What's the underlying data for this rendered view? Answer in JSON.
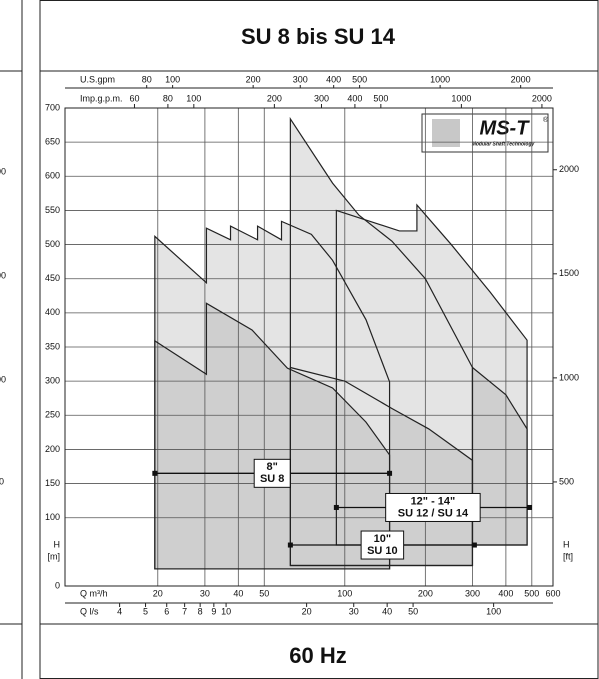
{
  "left_fragments": [
    "00",
    "00",
    "00",
    "0"
  ],
  "chart_data": {
    "type": "area-map",
    "title": "SU 8 bis SU 14",
    "footer": "60 Hz",
    "logo": {
      "text": "MS-T",
      "mark": "®",
      "tagline": "Modular Shaft Technology"
    },
    "xlabel": "Q m³/h",
    "x2label": "Q l/s",
    "x3label": "U.S.gpm",
    "x4label": "Imp.g.p.m.",
    "ylabel": [
      "H",
      "[m]"
    ],
    "y2label": [
      "H",
      "[ft]"
    ],
    "xlog": true,
    "xlim": [
      9,
      600
    ],
    "xticks": [
      20,
      30,
      40,
      50,
      100,
      200,
      300,
      400,
      500,
      600
    ],
    "x2lim": [
      2.5,
      166.7
    ],
    "x2ticks": [
      4,
      5,
      6,
      7,
      8,
      9,
      10,
      20,
      30,
      40,
      50,
      100
    ],
    "x3lim": [
      39.6,
      2642
    ],
    "x3ticks": [
      80,
      100,
      200,
      300,
      400,
      500,
      1000,
      2000
    ],
    "x4lim": [
      33,
      2200
    ],
    "x4ticks": [
      60,
      80,
      100,
      200,
      300,
      400,
      500,
      1000,
      2000
    ],
    "ylim": [
      0,
      700
    ],
    "yticks": [
      0,
      100,
      150,
      200,
      250,
      300,
      350,
      400,
      450,
      500,
      550,
      600,
      650,
      700
    ],
    "y2lim": [
      0,
      2296.7
    ],
    "y2ticks": [
      500,
      1000,
      1500,
      2000
    ],
    "grid": true,
    "regions": [
      {
        "color": "#e4e4e4",
        "x": [
          93,
          160,
          186,
          186,
          250,
          350,
          480,
          480,
          93
        ],
        "values": [
          550,
          520,
          520,
          558,
          500,
          430,
          360,
          60,
          60
        ]
      },
      {
        "color": "#cfcfcf",
        "x": [
          300,
          400,
          480,
          480,
          300
        ],
        "values": [
          320,
          280,
          230,
          60,
          60
        ]
      },
      {
        "color": "#e4e4e4",
        "x": [
          62.6,
          90,
          113,
          150,
          200,
          300,
          300,
          62.6
        ],
        "values": [
          684,
          590,
          543,
          505,
          450,
          320,
          30,
          30
        ]
      },
      {
        "color": "#cfcfcf",
        "x": [
          62.6,
          100,
          150,
          206,
          300,
          300,
          62.6
        ],
        "values": [
          320,
          300,
          260,
          230,
          184,
          30,
          30
        ]
      },
      {
        "color": "#e4e4e4",
        "x": [
          19.5,
          30.4,
          30.4,
          37.4,
          37.4,
          47.2,
          47.2,
          58,
          58,
          75,
          90,
          120,
          147,
          147,
          19.5
        ],
        "values": [
          512,
          444,
          524,
          507,
          527,
          507,
          527,
          507,
          534,
          515,
          477,
          390,
          299,
          25,
          25
        ]
      },
      {
        "color": "#cfcfcf",
        "x": [
          19.5,
          30.4,
          30.4,
          45,
          61,
          90,
          120,
          147,
          147,
          19.5
        ],
        "values": [
          359,
          310,
          414,
          375,
          319,
          290,
          240,
          192,
          25,
          25
        ]
      }
    ],
    "ranges": [
      {
        "x": [
          19.5,
          147
        ],
        "value": 165,
        "label": [
          "8\"",
          "SU 8"
        ]
      },
      {
        "x": [
          62.6,
          305
        ],
        "value": 60,
        "label": [
          "10\"",
          "SU 10"
        ]
      },
      {
        "x": [
          93,
          490
        ],
        "value": 115,
        "label": [
          "12\" - 14\"",
          "SU 12 / SU 14"
        ]
      }
    ]
  }
}
